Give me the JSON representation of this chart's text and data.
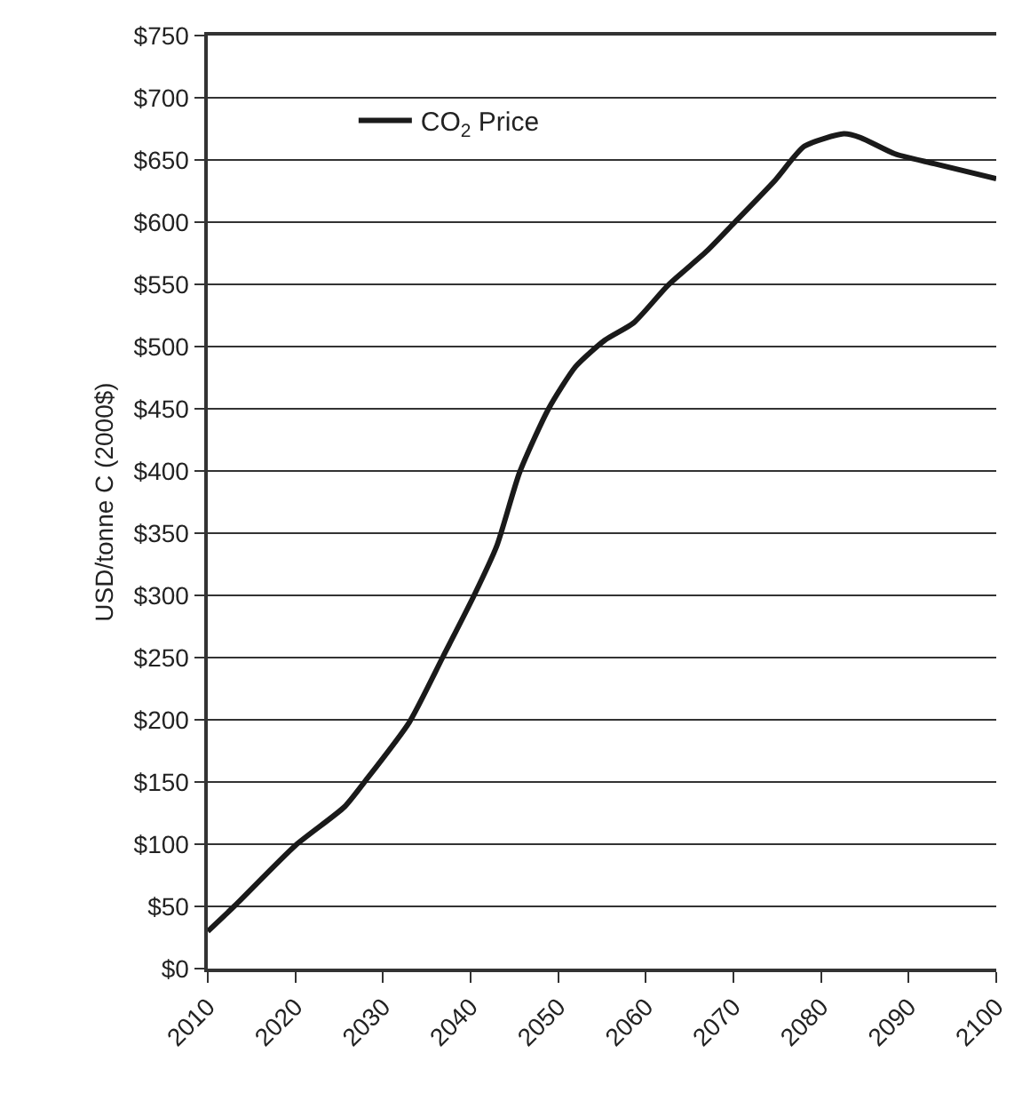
{
  "chart_data": {
    "type": "line",
    "ylabel": "USD/tonne C (2000$)",
    "x": [
      2010,
      2013,
      2020,
      2025.6,
      2028,
      2033,
      2036.8,
      2040.4,
      2043,
      2045.6,
      2048.9,
      2052,
      2055.3,
      2058.6,
      2062.5,
      2067,
      2070.3,
      2074.8,
      2078.1,
      2082.6,
      2084.5,
      2088.4,
      2092.9,
      2100
    ],
    "series": [
      {
        "name": "CO$_{2}$ Price",
        "color": "#1a1a1a",
        "values": [
          30,
          50,
          99,
          130,
          151,
          198,
          250,
          300,
          340,
          399,
          450,
          484,
          505,
          519,
          549,
          577,
          601,
          634,
          661,
          671,
          668,
          655,
          647,
          635
        ]
      }
    ],
    "xlim": [
      2010,
      2100
    ],
    "xticks": [
      2010,
      2020,
      2030,
      2040,
      2050,
      2060,
      2070,
      2080,
      2090,
      2100
    ],
    "ylim": [
      0,
      750
    ],
    "yticks": [
      {
        "value": 0,
        "label": "$0"
      },
      {
        "value": 50,
        "label": "$50"
      },
      {
        "value": 100,
        "label": "$100"
      },
      {
        "value": 150,
        "label": "$150"
      },
      {
        "value": 200,
        "label": "$200"
      },
      {
        "value": 250,
        "label": "$250"
      },
      {
        "value": 300,
        "label": "$300"
      },
      {
        "value": 350,
        "label": "$350"
      },
      {
        "value": 400,
        "label": "$400"
      },
      {
        "value": 450,
        "label": "$450"
      },
      {
        "value": 500,
        "label": "$500"
      },
      {
        "value": 550,
        "label": "$550"
      },
      {
        "value": 600,
        "label": "$600"
      },
      {
        "value": 650,
        "label": "$650"
      },
      {
        "value": 700,
        "label": "$700"
      },
      {
        "value": 750,
        "label": "$750"
      }
    ],
    "grid": "y",
    "legend": "top left",
    "marker": "none",
    "line_style": "solid"
  }
}
